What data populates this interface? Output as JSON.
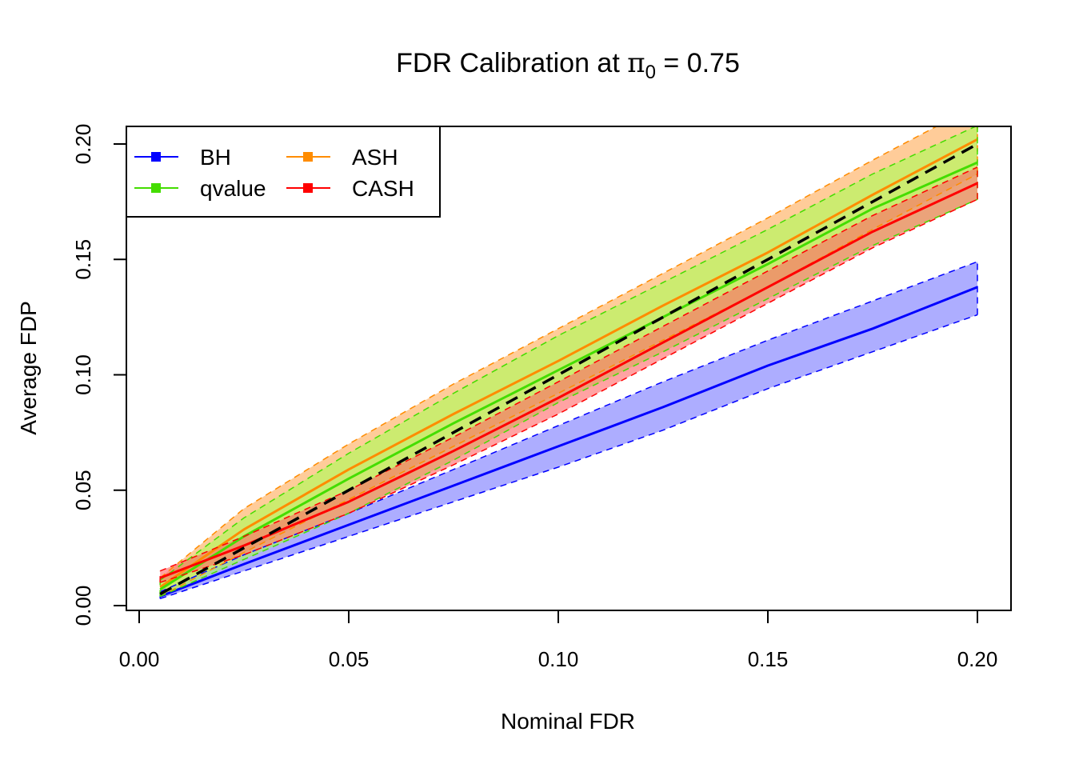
{
  "chart_data": {
    "type": "line",
    "title_prefix": "FDR Calibration at ",
    "title_symbol": "π",
    "title_subscript": "0",
    "title_suffix": " = 0.75",
    "xlabel": "Nominal FDR",
    "ylabel": "Average FDP",
    "xlim": [
      0,
      0.2
    ],
    "ylim": [
      0,
      0.2
    ],
    "x_ticks": [
      0.0,
      0.05,
      0.1,
      0.15,
      0.2
    ],
    "y_ticks": [
      0.0,
      0.05,
      0.1,
      0.15,
      0.2
    ],
    "x_tick_labels": [
      "0.00",
      "0.05",
      "0.10",
      "0.15",
      "0.20"
    ],
    "y_tick_labels": [
      "0.00",
      "0.05",
      "0.10",
      "0.15",
      "0.20"
    ],
    "legend_position": "top-left",
    "grid": false,
    "reference_line": {
      "x": [
        0.005,
        0.2
      ],
      "y": [
        0.005,
        0.2
      ],
      "color": "#000000",
      "style": "dashed"
    },
    "series": [
      {
        "name": "BH",
        "color": "#0000ff",
        "band_color": "#7777ff",
        "x": [
          0.005,
          0.025,
          0.05,
          0.075,
          0.1,
          0.125,
          0.15,
          0.175,
          0.2
        ],
        "mean": [
          0.004,
          0.018,
          0.035,
          0.052,
          0.069,
          0.086,
          0.104,
          0.12,
          0.138
        ],
        "lower": [
          0.003,
          0.015,
          0.03,
          0.045,
          0.06,
          0.076,
          0.094,
          0.11,
          0.126
        ],
        "upper": [
          0.006,
          0.022,
          0.04,
          0.059,
          0.078,
          0.097,
          0.115,
          0.132,
          0.149
        ]
      },
      {
        "name": "qvalue",
        "color": "#44dd00",
        "band_color": "#aaff55",
        "x": [
          0.005,
          0.025,
          0.05,
          0.075,
          0.1,
          0.125,
          0.15,
          0.175,
          0.2
        ],
        "mean": [
          0.007,
          0.03,
          0.055,
          0.079,
          0.102,
          0.125,
          0.148,
          0.172,
          0.192
        ],
        "lower": [
          0.004,
          0.02,
          0.04,
          0.063,
          0.088,
          0.11,
          0.133,
          0.156,
          0.176
        ],
        "upper": [
          0.011,
          0.038,
          0.066,
          0.092,
          0.117,
          0.14,
          0.163,
          0.187,
          0.208
        ]
      },
      {
        "name": "ASH",
        "color": "#ff8c00",
        "band_color": "#ffaa55",
        "x": [
          0.005,
          0.025,
          0.05,
          0.075,
          0.1,
          0.125,
          0.15,
          0.175,
          0.2
        ],
        "mean": [
          0.008,
          0.033,
          0.059,
          0.083,
          0.106,
          0.13,
          0.153,
          0.178,
          0.202
        ],
        "lower": [
          0.004,
          0.023,
          0.046,
          0.069,
          0.092,
          0.115,
          0.138,
          0.163,
          0.187
        ],
        "upper": [
          0.012,
          0.042,
          0.07,
          0.096,
          0.12,
          0.144,
          0.168,
          0.193,
          0.217
        ]
      },
      {
        "name": "CASH",
        "color": "#ff0000",
        "band_color": "#ff6666",
        "x": [
          0.005,
          0.025,
          0.05,
          0.075,
          0.1,
          0.125,
          0.15,
          0.175,
          0.2
        ],
        "mean": [
          0.012,
          0.026,
          0.045,
          0.067,
          0.09,
          0.114,
          0.138,
          0.162,
          0.183
        ],
        "lower": [
          0.01,
          0.022,
          0.04,
          0.061,
          0.083,
          0.107,
          0.131,
          0.155,
          0.176
        ],
        "upper": [
          0.015,
          0.03,
          0.05,
          0.073,
          0.097,
          0.121,
          0.145,
          0.169,
          0.19
        ]
      }
    ]
  }
}
